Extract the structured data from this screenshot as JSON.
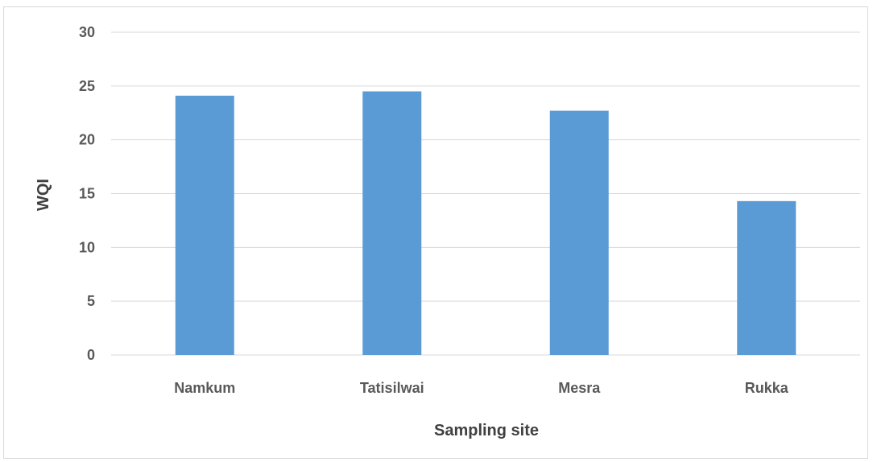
{
  "chart_data": {
    "type": "bar",
    "title": "",
    "xlabel": "Sampling site",
    "ylabel": "WQI",
    "categories": [
      "Namkum",
      "Tatisilwai",
      "Mesra",
      "Rukka"
    ],
    "values": [
      24.1,
      24.5,
      22.7,
      14.3
    ],
    "ylim": [
      0,
      30
    ],
    "yticks": [
      "0",
      "5",
      "10",
      "15",
      "20",
      "25",
      "30"
    ],
    "grid": true,
    "legend": "none",
    "bar_color": "#5b9bd5"
  }
}
